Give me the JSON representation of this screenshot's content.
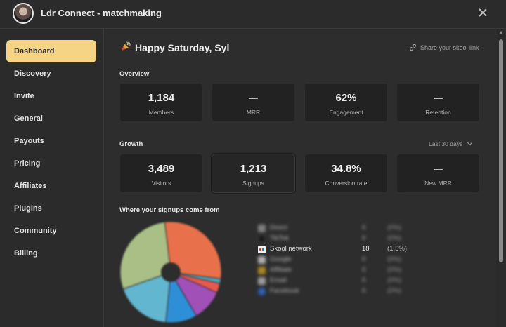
{
  "header": {
    "title": "Ldr Connect - matchmaking"
  },
  "sidebar": {
    "items": [
      {
        "label": "Dashboard",
        "active": true
      },
      {
        "label": "Discovery"
      },
      {
        "label": "Invite"
      },
      {
        "label": "General"
      },
      {
        "label": "Payouts"
      },
      {
        "label": "Pricing"
      },
      {
        "label": "Affiliates"
      },
      {
        "label": "Plugins"
      },
      {
        "label": "Community"
      },
      {
        "label": "Billing"
      }
    ]
  },
  "main": {
    "greeting": "Happy Saturday, Syl",
    "share_label": "Share your skool link",
    "overview": {
      "title": "Overview",
      "cards": [
        {
          "value": "1,184",
          "label": "Members"
        },
        {
          "value": "—",
          "label": "MRR"
        },
        {
          "value": "62%",
          "label": "Engagement"
        },
        {
          "value": "—",
          "label": "Retention"
        }
      ]
    },
    "growth": {
      "title": "Growth",
      "range": "Last 30 days",
      "cards": [
        {
          "value": "3,489",
          "label": "Visitors"
        },
        {
          "value": "1,213",
          "label": "Signups"
        },
        {
          "value": "34.8%",
          "label": "Conversion rate"
        },
        {
          "value": "—",
          "label": "New MRR"
        }
      ]
    },
    "sources": {
      "title": "Where your signups come from",
      "rows": [
        {
          "name": "Direct",
          "count": "0",
          "pct": "(0%)",
          "icon_color": "#9a9a9a",
          "blurred": true
        },
        {
          "name": "TikTok",
          "count": "0",
          "pct": "(0%)",
          "icon_color": "#111111",
          "blurred": true
        },
        {
          "name": "Skool network",
          "count": "18",
          "pct": "(1.5%)",
          "icon_color": "#f2f2f2",
          "blurred": false
        },
        {
          "name": "Google",
          "count": "0",
          "pct": "(0%)",
          "icon_color": "#d9d9d9",
          "blurred": true
        },
        {
          "name": "Affiliate",
          "count": "0",
          "pct": "(0%)",
          "icon_color": "#d1a21f",
          "blurred": true
        },
        {
          "name": "Email",
          "count": "0",
          "pct": "(0%)",
          "icon_color": "#bfbfbf",
          "blurred": true
        },
        {
          "name": "Facebook",
          "count": "0",
          "pct": "(0%)",
          "icon_color": "#2f6fe0",
          "blurred": true
        }
      ]
    }
  },
  "colors": {
    "accent": "#f5d485",
    "pie": [
      "#e8704a",
      "#4aa6c0",
      "#e8584e",
      "#a150b8",
      "#2f8fd6",
      "#62b6cf",
      "#a9bf86"
    ]
  }
}
